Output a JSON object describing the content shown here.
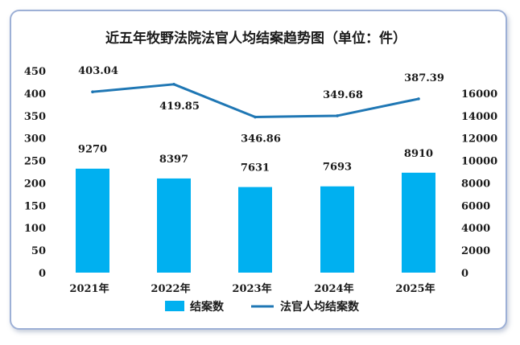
{
  "chart_data": {
    "type": "bar",
    "title": "近五年牧野法院法官人均结案趋势图（单位：件）",
    "categories": [
      "2021年",
      "2022年",
      "2023年",
      "2024年",
      "2025年"
    ],
    "series": [
      {
        "name": "结案数",
        "type": "bar",
        "axis": "right",
        "values": [
          9270,
          8397,
          7631,
          7693,
          8910
        ],
        "labels": [
          "9270",
          "8397",
          "7631",
          "7693",
          "8910"
        ],
        "color": "#00b0f0"
      },
      {
        "name": "法官人均结案数",
        "type": "line",
        "axis": "left",
        "values": [
          403.04,
          419.85,
          346.86,
          349.68,
          387.39
        ],
        "labels": [
          "403.04",
          "419.85",
          "346.86",
          "349.68",
          "387.39"
        ],
        "color": "#1f77b4"
      }
    ],
    "left_axis": {
      "ylim": [
        0,
        450
      ],
      "ticks": [
        "0",
        "50",
        "100",
        "150",
        "200",
        "250",
        "300",
        "350",
        "400",
        "450"
      ]
    },
    "right_axis": {
      "ylim": [
        0,
        18000
      ],
      "ticks": [
        "0",
        "2000",
        "4000",
        "6000",
        "8000",
        "10000",
        "12000",
        "14000",
        "16000"
      ]
    },
    "legend": "bottom",
    "grid": false
  }
}
